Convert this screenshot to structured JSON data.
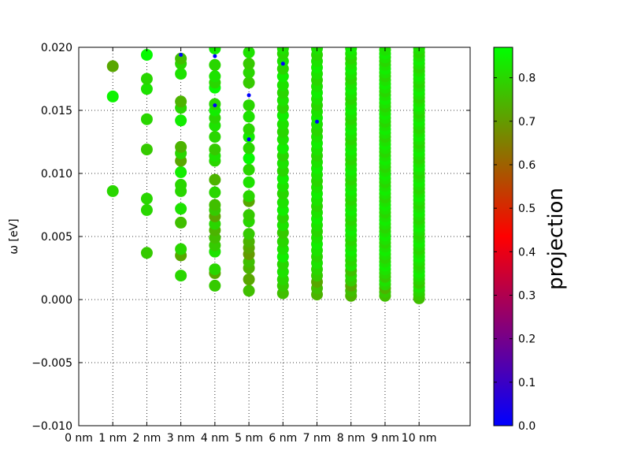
{
  "chart_data": {
    "type": "scatter",
    "title": "",
    "xlabel": "",
    "ylabel": "ω [eV]",
    "xlim": [
      0,
      11.5
    ],
    "ylim": [
      -0.01,
      0.02
    ],
    "x_ticks": [
      0,
      1,
      2,
      3,
      4,
      5,
      6,
      7,
      8,
      9,
      10
    ],
    "x_tick_labels": [
      "0 nm",
      "1 nm",
      "2 nm",
      "3 nm",
      "4 nm",
      "5 nm",
      "6 nm",
      "7 nm",
      "8 nm",
      "9 nm",
      "10 nm"
    ],
    "y_ticks": [
      -0.01,
      -0.005,
      0.0,
      0.005,
      0.01,
      0.015,
      0.02
    ],
    "y_tick_labels": [
      "−0.010",
      "−0.005",
      "0.000",
      "0.005",
      "0.010",
      "0.015",
      "0.020"
    ],
    "grid": true,
    "colorbar": {
      "label": "projection",
      "min": 0.0,
      "max": 0.87,
      "ticks": [
        0.0,
        0.1,
        0.2,
        0.3,
        0.4,
        0.5,
        0.6,
        0.7,
        0.8
      ],
      "tick_labels": [
        "0.0",
        "0.1",
        "0.2",
        "0.3",
        "0.4",
        "0.5",
        "0.6",
        "0.7",
        "0.8"
      ],
      "colors": [
        "#0000ff",
        "#ff0000",
        "#00ff00"
      ]
    },
    "series": [
      {
        "x": 1,
        "y": [
          0.0086,
          0.0161,
          0.0185
        ],
        "projection": [
          0.8,
          0.85,
          0.72
        ]
      },
      {
        "x": 2,
        "y": [
          0.0037,
          0.0071,
          0.008,
          0.0119,
          0.0143,
          0.0167,
          0.0175,
          0.0194
        ],
        "projection": [
          0.78,
          0.8,
          0.8,
          0.78,
          0.8,
          0.82,
          0.8,
          0.86
        ]
      },
      {
        "x": 3,
        "y": [
          0.0019,
          0.0035,
          0.004,
          0.0061,
          0.0072,
          0.0086,
          0.0091,
          0.0101,
          0.011,
          0.0116,
          0.0121,
          0.0142,
          0.0152,
          0.0157,
          0.0179,
          0.0187,
          0.0191
        ],
        "projection": [
          0.8,
          0.72,
          0.8,
          0.76,
          0.82,
          0.8,
          0.8,
          0.84,
          0.72,
          0.8,
          0.74,
          0.84,
          0.8,
          0.74,
          0.82,
          0.8,
          0.76
        ]
      },
      {
        "x": 4,
        "y": [
          0.0011,
          0.0021,
          0.0024,
          0.0038,
          0.0043,
          0.0049,
          0.0055,
          0.006,
          0.0066,
          0.0071,
          0.0075,
          0.0085,
          0.0095,
          0.011,
          0.0114,
          0.0119,
          0.0129,
          0.0138,
          0.0144,
          0.015,
          0.0155,
          0.0168,
          0.0172,
          0.0177,
          0.0186,
          0.0199
        ],
        "projection": [
          0.78,
          0.72,
          0.8,
          0.82,
          0.78,
          0.76,
          0.74,
          0.8,
          0.72,
          0.78,
          0.76,
          0.8,
          0.74,
          0.8,
          0.82,
          0.78,
          0.8,
          0.82,
          0.8,
          0.84,
          0.8,
          0.86,
          0.8,
          0.82,
          0.8,
          0.84
        ]
      },
      {
        "x": 5,
        "y": [
          0.0007,
          0.0016,
          0.0025,
          0.003,
          0.0036,
          0.0041,
          0.0046,
          0.0052,
          0.0062,
          0.0067,
          0.0078,
          0.0082,
          0.0093,
          0.0103,
          0.0112,
          0.012,
          0.0129,
          0.0135,
          0.0145,
          0.0154,
          0.0172,
          0.018,
          0.0187,
          0.0196
        ],
        "projection": [
          0.76,
          0.72,
          0.74,
          0.76,
          0.7,
          0.72,
          0.74,
          0.78,
          0.8,
          0.78,
          0.72,
          0.8,
          0.82,
          0.8,
          0.86,
          0.8,
          0.84,
          0.8,
          0.82,
          0.8,
          0.78,
          0.8,
          0.78,
          0.82
        ]
      },
      {
        "x": 6,
        "y": [
          0.0005,
          0.0011,
          0.0016,
          0.0022,
          0.0028,
          0.0034,
          0.004,
          0.0046,
          0.0053,
          0.0059,
          0.0065,
          0.0071,
          0.0077,
          0.0084,
          0.009,
          0.0096,
          0.0102,
          0.0108,
          0.0114,
          0.012,
          0.0127,
          0.0133,
          0.0139,
          0.0146,
          0.0152,
          0.0158,
          0.0164,
          0.017,
          0.0177,
          0.0183,
          0.0189,
          0.0195,
          0.0199
        ],
        "projection": [
          0.76,
          0.78,
          0.8,
          0.82,
          0.8,
          0.84,
          0.82,
          0.8,
          0.78,
          0.82,
          0.8,
          0.84,
          0.82,
          0.8,
          0.82,
          0.84,
          0.8,
          0.82,
          0.8,
          0.84,
          0.82,
          0.8,
          0.82,
          0.84,
          0.8,
          0.82,
          0.8,
          0.82,
          0.84,
          0.8,
          0.82,
          0.8,
          0.82
        ]
      },
      {
        "x": 7,
        "y": [
          0.0004,
          0.0009,
          0.0014,
          0.0019,
          0.0024,
          0.0029,
          0.0034,
          0.0039,
          0.0044,
          0.0049,
          0.0054,
          0.0059,
          0.0064,
          0.0069,
          0.0074,
          0.0079,
          0.0084,
          0.0089,
          0.0094,
          0.0099,
          0.0104,
          0.0109,
          0.0114,
          0.0119,
          0.0124,
          0.0129,
          0.0134,
          0.0139,
          0.0144,
          0.0149,
          0.0154,
          0.0159,
          0.0164,
          0.0169,
          0.0174,
          0.0179,
          0.0184,
          0.0189,
          0.0194,
          0.0199
        ],
        "projection": [
          0.74,
          0.76,
          0.72,
          0.78,
          0.8,
          0.82,
          0.8,
          0.82,
          0.84,
          0.82,
          0.8,
          0.82,
          0.84,
          0.82,
          0.8,
          0.82,
          0.84,
          0.82,
          0.8,
          0.82,
          0.84,
          0.82,
          0.8,
          0.82,
          0.84,
          0.82,
          0.8,
          0.82,
          0.84,
          0.82,
          0.8,
          0.82,
          0.84,
          0.82,
          0.8,
          0.82,
          0.84,
          0.82,
          0.8,
          0.82
        ]
      },
      {
        "x": 8,
        "y": [
          0.0003,
          0.0007,
          0.0011,
          0.0015,
          0.0019,
          0.0023,
          0.0027,
          0.0031,
          0.0035,
          0.0039,
          0.0043,
          0.0047,
          0.0051,
          0.0055,
          0.0059,
          0.0063,
          0.0067,
          0.0071,
          0.0075,
          0.0079,
          0.0083,
          0.0087,
          0.0091,
          0.0095,
          0.0099,
          0.0103,
          0.0107,
          0.0111,
          0.0115,
          0.0119,
          0.0123,
          0.0127,
          0.0131,
          0.0135,
          0.0139,
          0.0143,
          0.0147,
          0.0151,
          0.0155,
          0.0159,
          0.0163,
          0.0167,
          0.0171,
          0.0175,
          0.0179,
          0.0183,
          0.0187,
          0.0191,
          0.0195,
          0.0199
        ],
        "projection": [
          0.74,
          0.76,
          0.72,
          0.78,
          0.8,
          0.76,
          0.82,
          0.8,
          0.82,
          0.84,
          0.82,
          0.8,
          0.82,
          0.84,
          0.82,
          0.8,
          0.82,
          0.84,
          0.82,
          0.8,
          0.82,
          0.84,
          0.82,
          0.8,
          0.82,
          0.84,
          0.82,
          0.8,
          0.82,
          0.84,
          0.82,
          0.8,
          0.82,
          0.84,
          0.82,
          0.8,
          0.82,
          0.84,
          0.82,
          0.8,
          0.82,
          0.84,
          0.82,
          0.8,
          0.82,
          0.84,
          0.82,
          0.8,
          0.82,
          0.84
        ]
      },
      {
        "x": 9,
        "y": [
          0.0003,
          0.0006,
          0.0009,
          0.0012,
          0.0015,
          0.0018,
          0.0021,
          0.0024,
          0.0027,
          0.003,
          0.0033,
          0.0036,
          0.0039,
          0.0042,
          0.0045,
          0.0048,
          0.0051,
          0.0054,
          0.0057,
          0.006,
          0.0063,
          0.0066,
          0.0069,
          0.0072,
          0.0075,
          0.0078,
          0.0081,
          0.0084,
          0.0087,
          0.009,
          0.0093,
          0.0096,
          0.0099,
          0.0102,
          0.0105,
          0.0108,
          0.0111,
          0.0114,
          0.0117,
          0.012,
          0.0123,
          0.0126,
          0.0129,
          0.0132,
          0.0135,
          0.0138,
          0.0141,
          0.0144,
          0.0147,
          0.015,
          0.0153,
          0.0156,
          0.0159,
          0.0162,
          0.0165,
          0.0168,
          0.0171,
          0.0174,
          0.0177,
          0.018,
          0.0183,
          0.0186,
          0.0189,
          0.0192,
          0.0195,
          0.0198
        ],
        "projection": [
          0.76,
          0.78,
          0.74,
          0.8,
          0.82,
          0.78,
          0.8,
          0.82,
          0.84,
          0.82,
          0.8,
          0.82,
          0.84,
          0.82,
          0.8,
          0.82,
          0.84,
          0.82,
          0.8,
          0.82,
          0.84,
          0.82,
          0.8,
          0.82,
          0.84,
          0.82,
          0.8,
          0.82,
          0.84,
          0.82,
          0.8,
          0.82,
          0.84,
          0.82,
          0.8,
          0.82,
          0.84,
          0.82,
          0.8,
          0.82,
          0.84,
          0.82,
          0.8,
          0.82,
          0.84,
          0.82,
          0.8,
          0.82,
          0.84,
          0.82,
          0.8,
          0.82,
          0.84,
          0.82,
          0.8,
          0.82,
          0.84,
          0.82,
          0.8,
          0.82,
          0.84,
          0.82,
          0.8,
          0.82,
          0.84,
          0.82
        ]
      },
      {
        "x": 10,
        "y": [
          0.0001,
          0.0004,
          0.0007,
          0.001,
          0.0013,
          0.0016,
          0.0019,
          0.0022,
          0.0025,
          0.0028,
          0.0031,
          0.0034,
          0.0037,
          0.004,
          0.0043,
          0.0046,
          0.0049,
          0.0052,
          0.0055,
          0.0058,
          0.0061,
          0.0064,
          0.0067,
          0.007,
          0.0073,
          0.0076,
          0.0079,
          0.0082,
          0.0085,
          0.0088,
          0.0091,
          0.0094,
          0.0097,
          0.01,
          0.0103,
          0.0106,
          0.0109,
          0.0112,
          0.0115,
          0.0118,
          0.0121,
          0.0124,
          0.0127,
          0.013,
          0.0133,
          0.0136,
          0.0139,
          0.0142,
          0.0145,
          0.0148,
          0.0151,
          0.0154,
          0.0157,
          0.016,
          0.0163,
          0.0166,
          0.0169,
          0.0172,
          0.0175,
          0.0178,
          0.0181,
          0.0184,
          0.0187,
          0.019,
          0.0193,
          0.0196,
          0.0199
        ],
        "projection": [
          0.76,
          0.78,
          0.8,
          0.82,
          0.78,
          0.8,
          0.82,
          0.84,
          0.82,
          0.8,
          0.82,
          0.84,
          0.82,
          0.8,
          0.82,
          0.84,
          0.82,
          0.8,
          0.82,
          0.84,
          0.82,
          0.8,
          0.82,
          0.84,
          0.82,
          0.8,
          0.82,
          0.84,
          0.82,
          0.8,
          0.82,
          0.84,
          0.82,
          0.8,
          0.82,
          0.84,
          0.82,
          0.8,
          0.82,
          0.84,
          0.82,
          0.8,
          0.82,
          0.84,
          0.82,
          0.8,
          0.82,
          0.84,
          0.82,
          0.8,
          0.82,
          0.84,
          0.82,
          0.8,
          0.82,
          0.84,
          0.82,
          0.8,
          0.82,
          0.84,
          0.82,
          0.8,
          0.82,
          0.84,
          0.82,
          0.8,
          0.82
        ]
      },
      {
        "x": 3,
        "y": [
          0.0194
        ],
        "projection": [
          0.0
        ],
        "marker": "small"
      },
      {
        "x": 4,
        "y": [
          0.0154,
          0.0193
        ],
        "projection": [
          0.0,
          0.0
        ],
        "marker": "small"
      },
      {
        "x": 5,
        "y": [
          0.0127,
          0.0162
        ],
        "projection": [
          0.0,
          0.0
        ],
        "marker": "small"
      },
      {
        "x": 6,
        "y": [
          0.0187
        ],
        "projection": [
          0.0
        ],
        "marker": "small"
      },
      {
        "x": 7,
        "y": [
          0.0141
        ],
        "projection": [
          0.0
        ],
        "marker": "small"
      }
    ]
  }
}
